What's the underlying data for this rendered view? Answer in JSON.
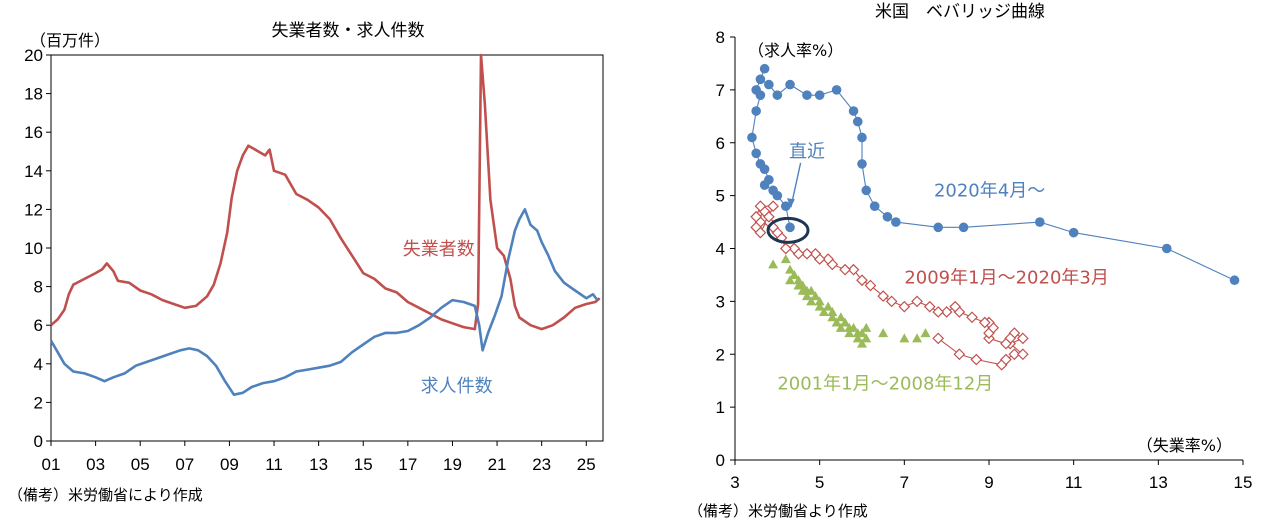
{
  "chart_data": [
    {
      "type": "line",
      "title": "失業者数・求人件数",
      "ylabel": "（百万件）",
      "ylim": [
        0,
        20
      ],
      "yticks": [
        0,
        2,
        4,
        6,
        8,
        10,
        12,
        14,
        16,
        18,
        20
      ],
      "xticks": [
        {
          "label": "01",
          "t": 2001
        },
        {
          "label": "03",
          "t": 2003
        },
        {
          "label": "05",
          "t": 2005
        },
        {
          "label": "07",
          "t": 2007
        },
        {
          "label": "09",
          "t": 2009
        },
        {
          "label": "11",
          "t": 2011
        },
        {
          "label": "13",
          "t": 2013
        },
        {
          "label": "15",
          "t": 2015
        },
        {
          "label": "17",
          "t": 2017
        },
        {
          "label": "19",
          "t": 2019
        },
        {
          "label": "21",
          "t": 2021
        },
        {
          "label": "23",
          "t": 2023
        },
        {
          "label": "25",
          "t": 2025
        }
      ],
      "xlim": [
        2001,
        2025.75
      ],
      "note": "（備考）米労働省により作成",
      "series": [
        {
          "name": "失業者数",
          "color": "#c0504d",
          "points": [
            [
              2001.0,
              6.0
            ],
            [
              2001.3,
              6.3
            ],
            [
              2001.6,
              6.8
            ],
            [
              2001.8,
              7.6
            ],
            [
              2002.0,
              8.1
            ],
            [
              2002.5,
              8.4
            ],
            [
              2003.0,
              8.7
            ],
            [
              2003.3,
              8.9
            ],
            [
              2003.5,
              9.2
            ],
            [
              2003.8,
              8.8
            ],
            [
              2004.0,
              8.3
            ],
            [
              2004.5,
              8.2
            ],
            [
              2005.0,
              7.8
            ],
            [
              2005.5,
              7.6
            ],
            [
              2006.0,
              7.3
            ],
            [
              2006.5,
              7.1
            ],
            [
              2007.0,
              6.9
            ],
            [
              2007.5,
              7.0
            ],
            [
              2008.0,
              7.5
            ],
            [
              2008.3,
              8.1
            ],
            [
              2008.6,
              9.2
            ],
            [
              2008.9,
              10.8
            ],
            [
              2009.1,
              12.6
            ],
            [
              2009.35,
              14.0
            ],
            [
              2009.6,
              14.8
            ],
            [
              2009.85,
              15.3
            ],
            [
              2010.0,
              15.2
            ],
            [
              2010.3,
              15.0
            ],
            [
              2010.6,
              14.8
            ],
            [
              2010.8,
              15.1
            ],
            [
              2011.0,
              14.0
            ],
            [
              2011.5,
              13.8
            ],
            [
              2012.0,
              12.8
            ],
            [
              2012.5,
              12.5
            ],
            [
              2013.0,
              12.1
            ],
            [
              2013.5,
              11.5
            ],
            [
              2014.0,
              10.5
            ],
            [
              2014.5,
              9.6
            ],
            [
              2015.0,
              8.7
            ],
            [
              2015.5,
              8.4
            ],
            [
              2016.0,
              7.9
            ],
            [
              2016.5,
              7.7
            ],
            [
              2017.0,
              7.2
            ],
            [
              2017.5,
              6.9
            ],
            [
              2018.0,
              6.6
            ],
            [
              2018.5,
              6.3
            ],
            [
              2019.0,
              6.1
            ],
            [
              2019.5,
              5.9
            ],
            [
              2020.0,
              5.8
            ],
            [
              2020.15,
              7.1
            ],
            [
              2020.28,
              20.5
            ],
            [
              2020.45,
              17.5
            ],
            [
              2020.7,
              12.5
            ],
            [
              2021.0,
              10.0
            ],
            [
              2021.3,
              9.6
            ],
            [
              2021.6,
              8.4
            ],
            [
              2021.8,
              7.0
            ],
            [
              2022.0,
              6.4
            ],
            [
              2022.5,
              6.0
            ],
            [
              2023.0,
              5.8
            ],
            [
              2023.5,
              6.0
            ],
            [
              2024.0,
              6.4
            ],
            [
              2024.5,
              6.9
            ],
            [
              2025.0,
              7.1
            ],
            [
              2025.4,
              7.2
            ],
            [
              2025.6,
              7.4
            ]
          ]
        },
        {
          "name": "求人件数",
          "color": "#4f81bd",
          "points": [
            [
              2001.0,
              5.2
            ],
            [
              2001.3,
              4.6
            ],
            [
              2001.6,
              4.0
            ],
            [
              2002.0,
              3.6
            ],
            [
              2002.5,
              3.5
            ],
            [
              2003.0,
              3.3
            ],
            [
              2003.4,
              3.1
            ],
            [
              2003.8,
              3.3
            ],
            [
              2004.3,
              3.5
            ],
            [
              2004.8,
              3.9
            ],
            [
              2005.3,
              4.1
            ],
            [
              2005.8,
              4.3
            ],
            [
              2006.3,
              4.5
            ],
            [
              2006.8,
              4.7
            ],
            [
              2007.2,
              4.8
            ],
            [
              2007.6,
              4.7
            ],
            [
              2008.0,
              4.4
            ],
            [
              2008.4,
              3.9
            ],
            [
              2008.8,
              3.1
            ],
            [
              2009.2,
              2.4
            ],
            [
              2009.6,
              2.5
            ],
            [
              2010.0,
              2.8
            ],
            [
              2010.5,
              3.0
            ],
            [
              2011.0,
              3.1
            ],
            [
              2011.5,
              3.3
            ],
            [
              2012.0,
              3.6
            ],
            [
              2012.5,
              3.7
            ],
            [
              2013.0,
              3.8
            ],
            [
              2013.5,
              3.9
            ],
            [
              2014.0,
              4.1
            ],
            [
              2014.5,
              4.6
            ],
            [
              2015.0,
              5.0
            ],
            [
              2015.5,
              5.4
            ],
            [
              2016.0,
              5.6
            ],
            [
              2016.5,
              5.6
            ],
            [
              2017.0,
              5.7
            ],
            [
              2017.5,
              6.0
            ],
            [
              2018.0,
              6.4
            ],
            [
              2018.5,
              6.9
            ],
            [
              2019.0,
              7.3
            ],
            [
              2019.5,
              7.2
            ],
            [
              2020.0,
              7.0
            ],
            [
              2020.2,
              6.0
            ],
            [
              2020.35,
              4.7
            ],
            [
              2020.6,
              5.6
            ],
            [
              2020.9,
              6.5
            ],
            [
              2021.2,
              7.5
            ],
            [
              2021.5,
              9.4
            ],
            [
              2021.8,
              10.9
            ],
            [
              2022.0,
              11.5
            ],
            [
              2022.25,
              12.0
            ],
            [
              2022.5,
              11.2
            ],
            [
              2022.8,
              10.9
            ],
            [
              2023.0,
              10.3
            ],
            [
              2023.3,
              9.6
            ],
            [
              2023.6,
              8.8
            ],
            [
              2024.0,
              8.2
            ],
            [
              2024.5,
              7.8
            ],
            [
              2025.0,
              7.4
            ],
            [
              2025.3,
              7.6
            ],
            [
              2025.5,
              7.3
            ]
          ]
        }
      ],
      "annotations": [
        {
          "text": "失業者数",
          "series": "失業者数"
        },
        {
          "text": "求人件数",
          "series": "求人件数"
        }
      ]
    },
    {
      "type": "scatter",
      "title": "米国　ベバリッジ曲線",
      "xlabel": "（失業率%）",
      "ylabel": "（求人率%）",
      "xlim": [
        3,
        15
      ],
      "ylim": [
        0,
        8
      ],
      "xticks": [
        3,
        5,
        7,
        9,
        11,
        13,
        15
      ],
      "yticks": [
        0,
        1,
        2,
        3,
        4,
        5,
        6,
        7,
        8
      ],
      "note": "（備考）米労働省より作成",
      "series": [
        {
          "name": "2020年4月～",
          "color": "#4f81bd",
          "marker": "circle",
          "connected": true,
          "points": [
            [
              14.8,
              3.4
            ],
            [
              13.2,
              4.0
            ],
            [
              11.0,
              4.3
            ],
            [
              10.2,
              4.5
            ],
            [
              8.4,
              4.4
            ],
            [
              7.8,
              4.4
            ],
            [
              6.8,
              4.5
            ],
            [
              6.6,
              4.6
            ],
            [
              6.3,
              4.8
            ],
            [
              6.1,
              5.1
            ],
            [
              6.0,
              5.6
            ],
            [
              6.0,
              6.1
            ],
            [
              5.9,
              6.4
            ],
            [
              5.8,
              6.6
            ],
            [
              5.4,
              7.0
            ],
            [
              5.0,
              6.9
            ],
            [
              4.7,
              6.9
            ],
            [
              4.3,
              7.1
            ],
            [
              4.0,
              6.9
            ],
            [
              3.8,
              7.1
            ],
            [
              3.6,
              7.2
            ],
            [
              3.7,
              7.4
            ],
            [
              3.5,
              7.0
            ],
            [
              3.6,
              6.9
            ],
            [
              3.5,
              6.6
            ],
            [
              3.4,
              6.1
            ],
            [
              3.5,
              5.8
            ],
            [
              3.6,
              5.6
            ],
            [
              3.7,
              5.5
            ],
            [
              3.8,
              5.3
            ],
            [
              3.7,
              5.2
            ],
            [
              3.9,
              5.1
            ],
            [
              4.0,
              5.0
            ],
            [
              4.2,
              4.8
            ],
            [
              4.3,
              4.4
            ]
          ]
        },
        {
          "name": "2009年1月～2020年3月",
          "color": "#c0504d",
          "marker": "diamond",
          "connected": true,
          "points": [
            [
              7.8,
              2.3
            ],
            [
              8.3,
              2.0
            ],
            [
              8.7,
              1.9
            ],
            [
              9.3,
              1.8
            ],
            [
              9.4,
              1.9
            ],
            [
              9.6,
              2.0
            ],
            [
              9.8,
              2.0
            ],
            [
              9.5,
              2.2
            ],
            [
              9.8,
              2.3
            ],
            [
              9.6,
              2.4
            ],
            [
              9.5,
              2.3
            ],
            [
              9.4,
              2.2
            ],
            [
              9.0,
              2.3
            ],
            [
              9.0,
              2.4
            ],
            [
              9.1,
              2.5
            ],
            [
              9.0,
              2.6
            ],
            [
              8.9,
              2.6
            ],
            [
              8.6,
              2.7
            ],
            [
              8.3,
              2.8
            ],
            [
              8.2,
              2.9
            ],
            [
              8.0,
              2.8
            ],
            [
              7.8,
              2.8
            ],
            [
              7.6,
              2.9
            ],
            [
              7.3,
              3.0
            ],
            [
              7.0,
              2.9
            ],
            [
              6.7,
              3.0
            ],
            [
              6.5,
              3.1
            ],
            [
              6.2,
              3.3
            ],
            [
              6.0,
              3.4
            ],
            [
              5.8,
              3.6
            ],
            [
              5.6,
              3.6
            ],
            [
              5.3,
              3.7
            ],
            [
              5.2,
              3.8
            ],
            [
              5.0,
              3.8
            ],
            [
              4.9,
              3.9
            ],
            [
              4.7,
              3.9
            ],
            [
              4.5,
              3.9
            ],
            [
              4.4,
              4.0
            ],
            [
              4.2,
              4.0
            ],
            [
              4.1,
              4.2
            ],
            [
              4.0,
              4.3
            ],
            [
              3.9,
              4.4
            ],
            [
              3.8,
              4.5
            ],
            [
              3.7,
              4.6
            ],
            [
              3.7,
              4.7
            ],
            [
              3.6,
              4.5
            ],
            [
              3.5,
              4.4
            ],
            [
              3.6,
              4.3
            ],
            [
              3.8,
              4.6
            ],
            [
              3.9,
              4.8
            ],
            [
              3.6,
              4.8
            ],
            [
              3.5,
              4.6
            ]
          ]
        },
        {
          "name": "2001年1月～2008年12月",
          "color": "#9bbb59",
          "marker": "triangle",
          "connected": false,
          "points": [
            [
              3.9,
              3.7
            ],
            [
              4.2,
              3.8
            ],
            [
              4.3,
              3.6
            ],
            [
              4.4,
              3.5
            ],
            [
              4.3,
              3.4
            ],
            [
              4.5,
              3.3
            ],
            [
              4.5,
              3.4
            ],
            [
              4.6,
              3.2
            ],
            [
              4.6,
              3.3
            ],
            [
              4.7,
              3.1
            ],
            [
              4.7,
              3.2
            ],
            [
              4.8,
              3.0
            ],
            [
              4.9,
              3.1
            ],
            [
              4.8,
              3.2
            ],
            [
              5.0,
              2.9
            ],
            [
              5.0,
              3.0
            ],
            [
              5.1,
              2.8
            ],
            [
              5.2,
              2.9
            ],
            [
              5.3,
              2.7
            ],
            [
              5.3,
              2.8
            ],
            [
              5.4,
              2.6
            ],
            [
              5.5,
              2.7
            ],
            [
              5.5,
              2.5
            ],
            [
              5.6,
              2.6
            ],
            [
              5.7,
              2.5
            ],
            [
              5.7,
              2.4
            ],
            [
              5.8,
              2.5
            ],
            [
              5.9,
              2.4
            ],
            [
              5.9,
              2.3
            ],
            [
              6.0,
              2.4
            ],
            [
              6.1,
              2.3
            ],
            [
              6.0,
              2.2
            ],
            [
              6.1,
              2.5
            ],
            [
              6.5,
              2.4
            ],
            [
              7.0,
              2.3
            ],
            [
              7.3,
              2.3
            ],
            [
              7.5,
              2.4
            ]
          ]
        }
      ],
      "annotations": [
        {
          "text": "直近"
        },
        {
          "text": "2020年4月～"
        },
        {
          "text": "2009年1月～2020年3月"
        },
        {
          "text": "2001年1月～2008年12月"
        }
      ]
    }
  ]
}
